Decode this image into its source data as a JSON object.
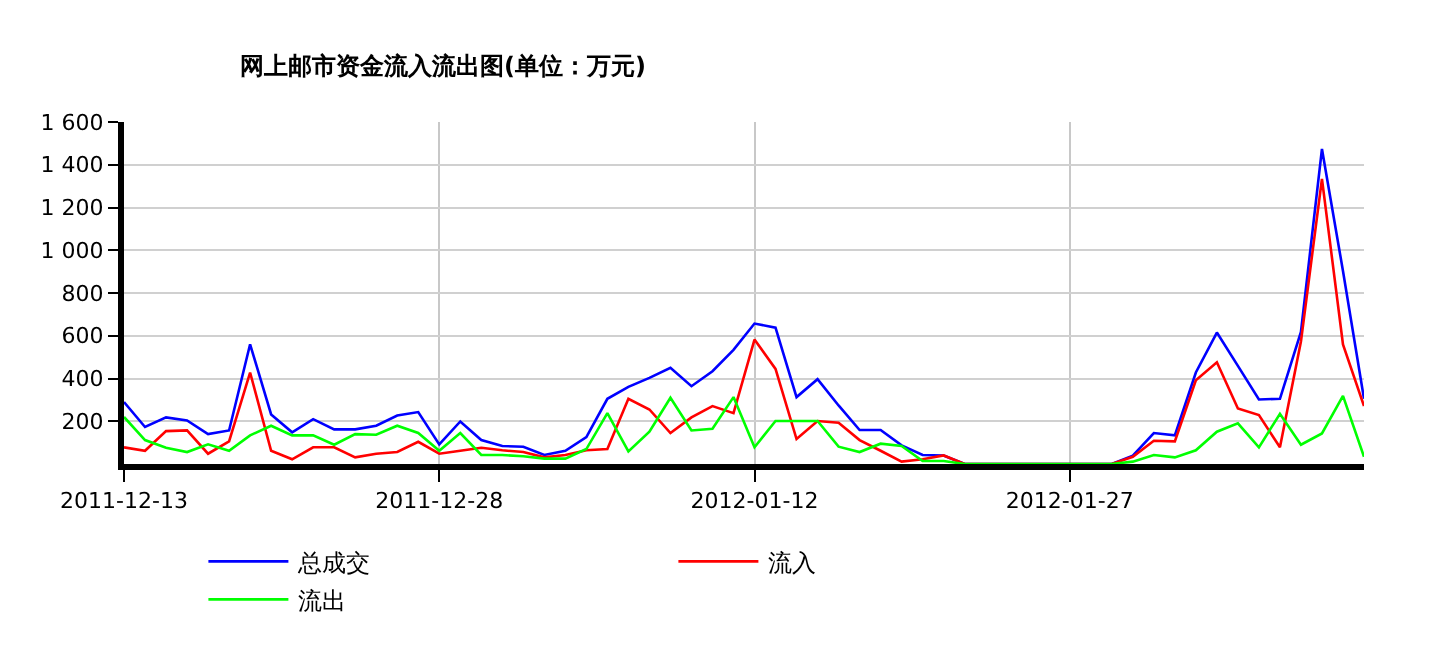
{
  "chart_data": {
    "type": "line",
    "title": "网上邮市资金流入流出图(单位：万元)",
    "x": [
      "2011-12-13",
      "2011-12-14",
      "2011-12-15",
      "2011-12-16",
      "2011-12-17",
      "2011-12-18",
      "2011-12-19",
      "2011-12-20",
      "2011-12-21",
      "2011-12-22",
      "2011-12-23",
      "2011-12-24",
      "2011-12-25",
      "2011-12-26",
      "2011-12-27",
      "2011-12-28",
      "2011-12-29",
      "2011-12-30",
      "2011-12-31",
      "2012-01-01",
      "2012-01-02",
      "2012-01-03",
      "2012-01-04",
      "2012-01-05",
      "2012-01-06",
      "2012-01-07",
      "2012-01-08",
      "2012-01-09",
      "2012-01-10",
      "2012-01-11",
      "2012-01-12",
      "2012-01-13",
      "2012-01-14",
      "2012-01-15",
      "2012-01-16",
      "2012-01-17",
      "2012-01-18",
      "2012-01-19",
      "2012-01-20",
      "2012-01-21",
      "2012-01-22",
      "2012-01-23",
      "2012-01-24",
      "2012-01-25",
      "2012-01-26",
      "2012-01-27",
      "2012-01-28",
      "2012-01-29",
      "2012-01-30",
      "2012-01-31",
      "2012-02-01",
      "2012-02-02",
      "2012-02-03",
      "2012-02-04",
      "2012-02-05",
      "2012-02-06",
      "2012-02-07",
      "2012-02-08",
      "2012-02-09",
      "2012-02-10"
    ],
    "series": [
      {
        "name": "总成交",
        "color": "#0000ff",
        "values": [
          290,
          173,
          218,
          204,
          140,
          157,
          560,
          232,
          148,
          210,
          162,
          162,
          179,
          227,
          243,
          92,
          199,
          112,
          84,
          81,
          42,
          62,
          126,
          305,
          361,
          403,
          450,
          364,
          434,
          534,
          657,
          638,
          313,
          397,
          274,
          159,
          159,
          87,
          42,
          40,
          0,
          0,
          0,
          0,
          0,
          0,
          0,
          0,
          39,
          145,
          134,
          428,
          615,
          459,
          302,
          305,
          618,
          1474,
          903,
          305
        ]
      },
      {
        "name": "流入",
        "color": "#ff0000",
        "values": [
          78,
          62,
          154,
          157,
          48,
          106,
          428,
          62,
          22,
          78,
          78,
          31,
          48,
          56,
          104,
          48,
          62,
          76,
          64,
          56,
          31,
          42,
          64,
          70,
          305,
          255,
          145,
          218,
          271,
          238,
          582,
          445,
          117,
          201,
          193,
          112,
          62,
          11,
          22,
          40,
          0,
          0,
          0,
          0,
          0,
          0,
          0,
          0,
          34,
          109,
          106,
          392,
          476,
          260,
          229,
          78,
          573,
          1334,
          559,
          271
        ]
      },
      {
        "name": "流出",
        "color": "#00ff00",
        "values": [
          220,
          112,
          76,
          56,
          92,
          62,
          134,
          179,
          134,
          134,
          90,
          140,
          137,
          179,
          145,
          62,
          145,
          42,
          42,
          36,
          25,
          25,
          70,
          238,
          59,
          151,
          310,
          157,
          165,
          313,
          78,
          201,
          201,
          201,
          81,
          56,
          95,
          84,
          14,
          14,
          0,
          0,
          0,
          0,
          0,
          0,
          0,
          0,
          11,
          42,
          31,
          64,
          151,
          190,
          78,
          235,
          90,
          143,
          319,
          34
        ]
      }
    ],
    "xlim": [
      "2011-12-13",
      "2012-02-10"
    ],
    "xticks": [
      "2011-12-13",
      "2011-12-28",
      "2012-01-12",
      "2012-01-27"
    ],
    "ylim": [
      0,
      1600
    ],
    "yticks": [
      {
        "value": 200,
        "label": "200"
      },
      {
        "value": 400,
        "label": "400"
      },
      {
        "value": 600,
        "label": "600"
      },
      {
        "value": 800,
        "label": "800"
      },
      {
        "value": 1000,
        "label": "1 000"
      },
      {
        "value": 1200,
        "label": "1 200"
      },
      {
        "value": 1400,
        "label": "1 400"
      },
      {
        "value": 1600,
        "label": "1 600"
      }
    ],
    "grid": true,
    "legend": "bottom",
    "marker": "none",
    "line_style": "solid"
  }
}
